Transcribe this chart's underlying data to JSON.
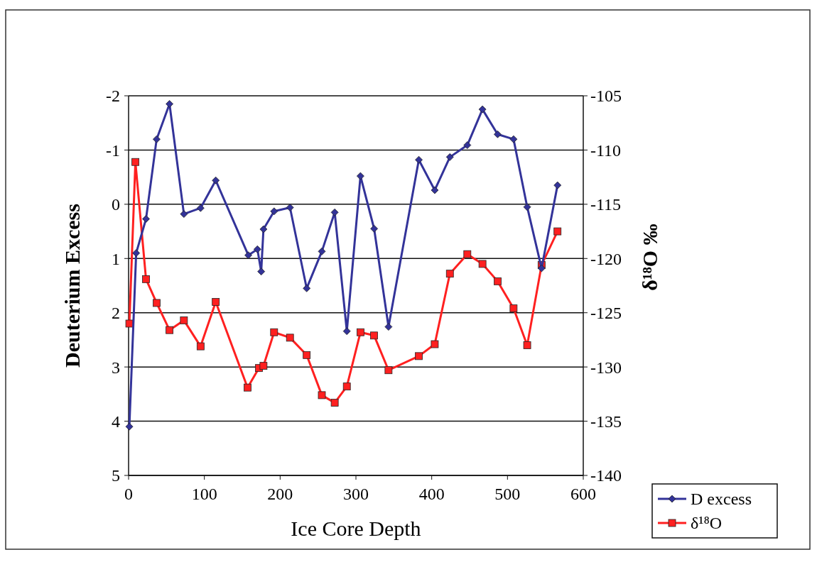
{
  "chart_data": {
    "type": "line",
    "xlabel": "Ice Core Depth",
    "ylabel": "Deuterium Excess",
    "y2label": "δ¹⁸O ‰",
    "xlim": [
      0,
      600
    ],
    "xticks": [
      0,
      100,
      200,
      300,
      400,
      500,
      600
    ],
    "ylim": [
      5,
      -2
    ],
    "yticks": [
      -2,
      -1,
      0,
      1,
      2,
      3,
      4,
      5
    ],
    "y2lim": [
      -140,
      -105
    ],
    "y2ticks": [
      -105,
      -110,
      -115,
      -120,
      -125,
      -130,
      -135,
      -140
    ],
    "grid": "y",
    "legend": "bottom right",
    "series": [
      {
        "name": "D excess",
        "color": "#333399",
        "marker": "diamond",
        "x": [
          1,
          10,
          23,
          37,
          54,
          73,
          95,
          115,
          158,
          170,
          175,
          178,
          192,
          213,
          235,
          255,
          272,
          288,
          306,
          324,
          343,
          383,
          404,
          424,
          447,
          467,
          487,
          508,
          526,
          545,
          566
        ],
        "values": [
          4.1,
          0.9,
          0.27,
          -1.2,
          -1.85,
          0.18,
          0.07,
          -0.44,
          0.94,
          0.83,
          1.24,
          0.46,
          0.13,
          0.06,
          1.55,
          0.87,
          0.15,
          2.34,
          -0.52,
          0.45,
          2.26,
          -0.82,
          -0.26,
          -0.87,
          -1.09,
          -1.75,
          -1.29,
          -1.2,
          0.05,
          1.18,
          -0.35
        ]
      },
      {
        "name": "δ¹⁸O",
        "color": "#ff2020",
        "marker": "square",
        "axis": "y2",
        "x": [
          1,
          9,
          23,
          37,
          54,
          73,
          95,
          115,
          157,
          172,
          178,
          192,
          213,
          235,
          255,
          272,
          288,
          306,
          324,
          343,
          383,
          404,
          424,
          447,
          467,
          487,
          508,
          526,
          545,
          566
        ],
        "values": [
          -126,
          -111.1,
          -121.9,
          -124.1,
          -126.6,
          -125.7,
          -128.1,
          -124,
          -131.9,
          -130.1,
          -129.9,
          -126.8,
          -127.3,
          -128.9,
          -132.6,
          -133.3,
          -131.8,
          -126.8,
          -127.1,
          -130.3,
          -129,
          -127.9,
          -121.4,
          -119.6,
          -120.5,
          -122.1,
          -124.6,
          -128,
          -120.6,
          -117.5
        ]
      }
    ]
  }
}
